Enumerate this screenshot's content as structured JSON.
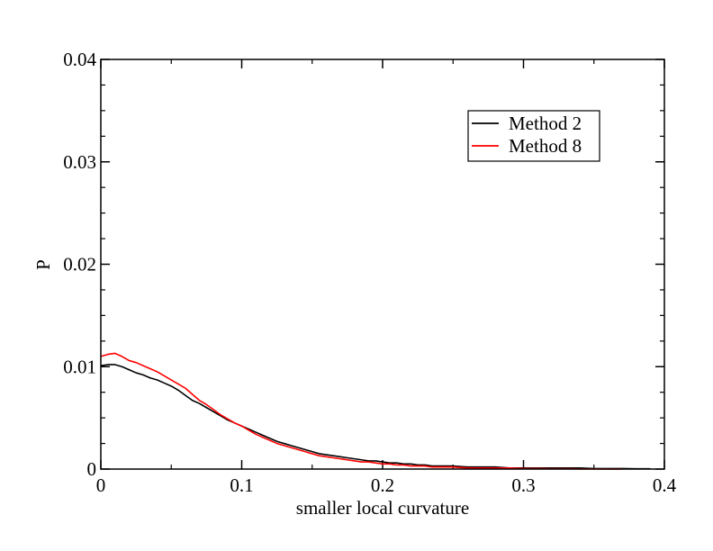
{
  "chart_data": {
    "type": "line",
    "title": "",
    "xlabel": "smaller local curvature",
    "ylabel": "P",
    "xlim": [
      0,
      0.4
    ],
    "ylim": [
      0,
      0.04
    ],
    "xticks": [
      0,
      0.1,
      0.2,
      0.3,
      0.4
    ],
    "xtick_labels": [
      "0",
      "0.1",
      "0.2",
      "0.3",
      "0.4"
    ],
    "yticks": [
      0,
      0.01,
      0.02,
      0.03,
      0.04
    ],
    "ytick_labels": [
      "0",
      "0.01",
      "0.02",
      "0.03",
      "0.04"
    ],
    "grid": false,
    "legend_position": "top-right",
    "series": [
      {
        "name": "Method 2",
        "color": "#000000",
        "x": [
          0,
          0.005,
          0.01,
          0.015,
          0.02,
          0.025,
          0.03,
          0.035,
          0.04,
          0.045,
          0.05,
          0.055,
          0.06,
          0.065,
          0.07,
          0.075,
          0.08,
          0.085,
          0.09,
          0.095,
          0.1,
          0.105,
          0.11,
          0.115,
          0.12,
          0.125,
          0.13,
          0.135,
          0.14,
          0.145,
          0.15,
          0.155,
          0.16,
          0.165,
          0.17,
          0.175,
          0.18,
          0.185,
          0.19,
          0.195,
          0.2,
          0.205,
          0.21,
          0.215,
          0.22,
          0.225,
          0.23,
          0.235,
          0.24,
          0.25,
          0.26,
          0.27,
          0.28,
          0.29,
          0.3,
          0.31,
          0.32,
          0.33,
          0.34,
          0.35,
          0.36,
          0.37,
          0.38,
          0.39
        ],
        "y": [
          0.0101,
          0.0102,
          0.0102,
          0.01,
          0.0097,
          0.0094,
          0.0092,
          0.0089,
          0.0087,
          0.0084,
          0.0081,
          0.0077,
          0.0072,
          0.0067,
          0.0064,
          0.006,
          0.0056,
          0.0052,
          0.0048,
          0.0045,
          0.0042,
          0.0039,
          0.0036,
          0.0033,
          0.003,
          0.0027,
          0.0025,
          0.0023,
          0.0021,
          0.0019,
          0.0017,
          0.0015,
          0.0014,
          0.0013,
          0.0012,
          0.0011,
          0.001,
          0.0009,
          0.0008,
          0.0008,
          0.0007,
          0.0006,
          0.0006,
          0.0005,
          0.0005,
          0.0004,
          0.0004,
          0.0003,
          0.0003,
          0.0003,
          0.0002,
          0.0002,
          0.0002,
          0.0001,
          0.0001,
          0.0001,
          0.0001,
          0.0001,
          0.0001,
          5e-05,
          5e-05,
          5e-05,
          3e-05,
          3e-05
        ]
      },
      {
        "name": "Method 8",
        "color": "#ff0000",
        "x": [
          0,
          0.005,
          0.01,
          0.015,
          0.02,
          0.025,
          0.03,
          0.035,
          0.04,
          0.045,
          0.05,
          0.055,
          0.06,
          0.065,
          0.07,
          0.075,
          0.08,
          0.085,
          0.09,
          0.095,
          0.1,
          0.105,
          0.11,
          0.115,
          0.12,
          0.125,
          0.13,
          0.135,
          0.14,
          0.145,
          0.15,
          0.155,
          0.16,
          0.165,
          0.17,
          0.175,
          0.18,
          0.185,
          0.19,
          0.195,
          0.2,
          0.205,
          0.21,
          0.215,
          0.22,
          0.225,
          0.23,
          0.235,
          0.24,
          0.25,
          0.26,
          0.27,
          0.28,
          0.29,
          0.3,
          0.31,
          0.32,
          0.33,
          0.34,
          0.35,
          0.36,
          0.37
        ],
        "y": [
          0.011,
          0.0112,
          0.0113,
          0.011,
          0.0106,
          0.0104,
          0.0101,
          0.0098,
          0.0095,
          0.0091,
          0.0087,
          0.0083,
          0.0079,
          0.0073,
          0.0067,
          0.0063,
          0.0058,
          0.0053,
          0.0049,
          0.0045,
          0.0042,
          0.0038,
          0.0034,
          0.0031,
          0.0028,
          0.0025,
          0.0023,
          0.0021,
          0.0019,
          0.0017,
          0.0015,
          0.0013,
          0.0012,
          0.0011,
          0.001,
          0.0009,
          0.0008,
          0.0007,
          0.0007,
          0.0006,
          0.0005,
          0.0005,
          0.0004,
          0.0004,
          0.0003,
          0.0003,
          0.0003,
          0.0002,
          0.0002,
          0.0002,
          0.0001,
          0.0001,
          0.0001,
          0.0001,
          5e-05,
          5e-05,
          3e-05,
          3e-05,
          2e-05,
          2e-05,
          1e-05,
          1e-05
        ]
      }
    ]
  }
}
